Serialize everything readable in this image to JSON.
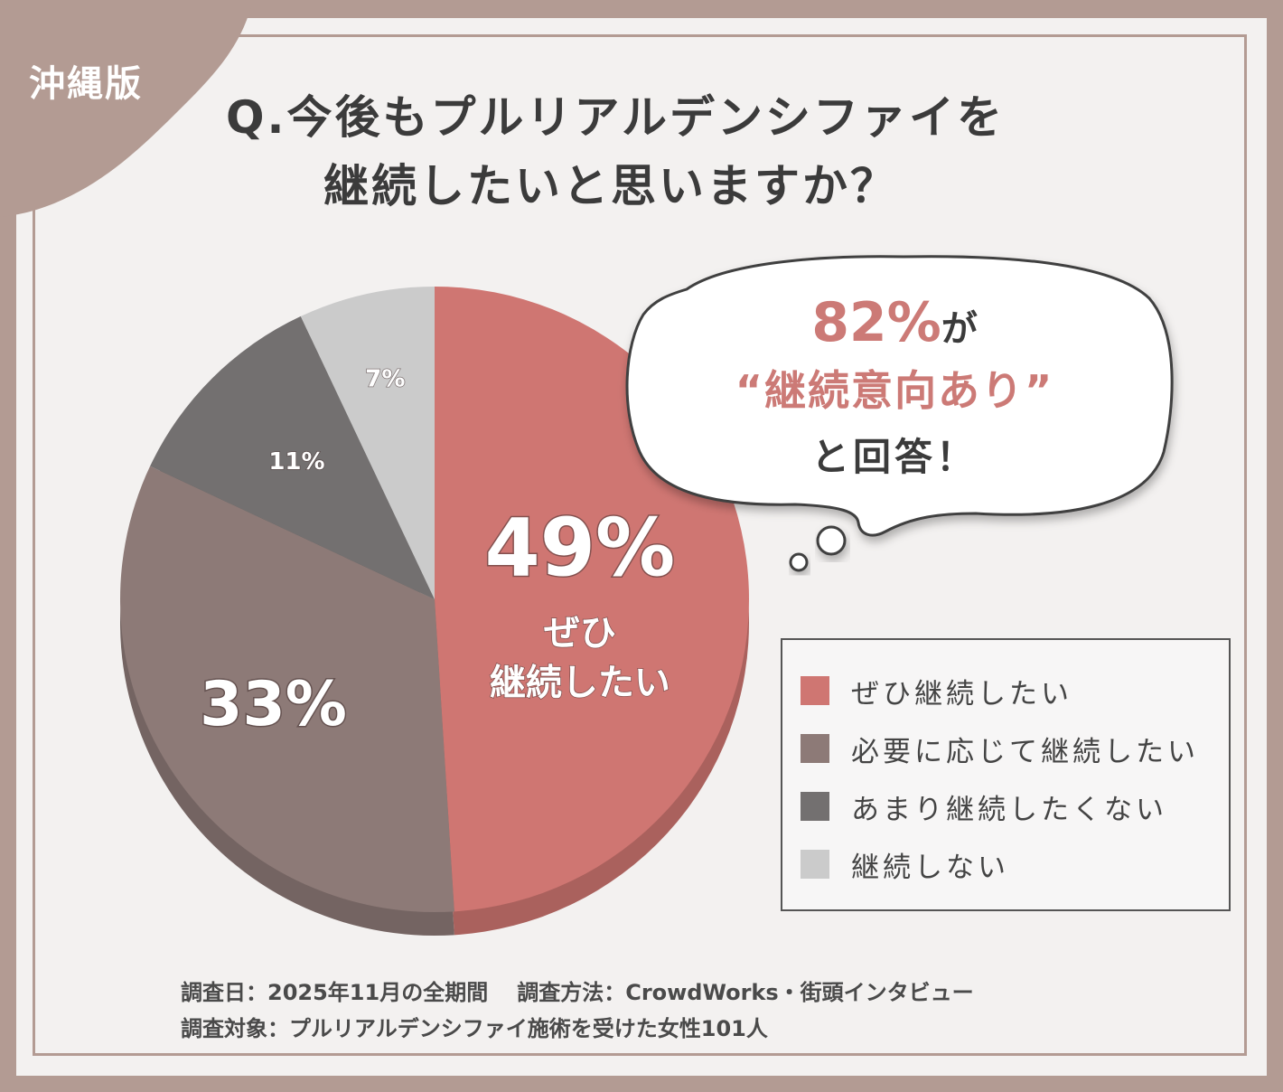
{
  "region_badge": "沖縄版",
  "title": {
    "line1": "Q.今後もプルリアルデンシファイを",
    "line2": "継続したいと思いますか？"
  },
  "callout": {
    "percent": "82%",
    "particle": "が",
    "phrase": "“継続意向あり”",
    "tail": "と回答！"
  },
  "chart_data": {
    "type": "pie",
    "slices": [
      {
        "label": "ぜひ継続したい",
        "value": 49,
        "color": "#cf7672"
      },
      {
        "label": "必要に応じて継続したい",
        "value": 33,
        "color": "#8d7a77"
      },
      {
        "label": "あまり継続したくない",
        "value": 11,
        "color": "#737070"
      },
      {
        "label": "継続しない",
        "value": 7,
        "color": "#cbcbcb"
      }
    ],
    "value_labels": [
      "49%",
      "33%",
      "11%",
      "7%"
    ],
    "slice_caption": {
      "line1": "ぜひ",
      "line2": "継続したい"
    },
    "legend_placement": "bottom-right"
  },
  "legend": {
    "items": [
      {
        "label": "ぜひ継続したい",
        "color": "#cf7672"
      },
      {
        "label": "必要に応じて継続したい",
        "color": "#8d7a77"
      },
      {
        "label": "あまり継続したくない",
        "color": "#737070"
      },
      {
        "label": "継続しない",
        "color": "#cbcbcb"
      }
    ]
  },
  "footer": {
    "date": "調査日：2025年11月の全期間",
    "method": "調査方法：CrowdWorks・街頭インタビュー",
    "target": "調査対象：プルリアルデンシファイ施術を受けた女性101人"
  }
}
